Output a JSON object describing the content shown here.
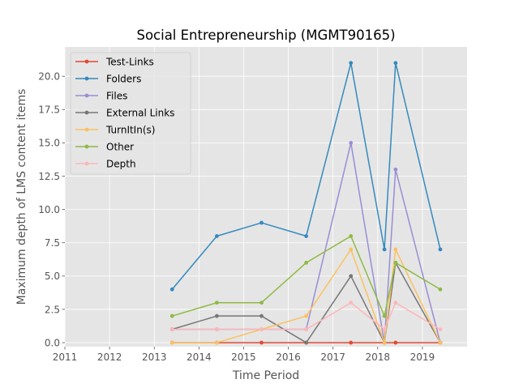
{
  "chart_data": {
    "type": "line",
    "title": "Social Entrepreneurship (MGMT90165)",
    "xlabel": "Time Period",
    "ylabel": "Maximum depth of LMS content items",
    "xlim": [
      2011,
      2020
    ],
    "ylim": [
      -0.3,
      22.2
    ],
    "xticks": [
      "2011",
      "2012",
      "2013",
      "2014",
      "2015",
      "2016",
      "2017",
      "2018",
      "2019"
    ],
    "xtick_values": [
      2011,
      2012,
      2013,
      2014,
      2015,
      2016,
      2017,
      2018,
      2019
    ],
    "yticks": [
      "0.0",
      "2.5",
      "5.0",
      "7.5",
      "10.0",
      "12.5",
      "15.0",
      "17.5",
      "20.0"
    ],
    "ytick_values": [
      0,
      2.5,
      5,
      7.5,
      10,
      12.5,
      15,
      17.5,
      20
    ],
    "grid": true,
    "legend_position": "top-left",
    "x": [
      2013.4,
      2014.4,
      2015.4,
      2016.4,
      2017.4,
      2018.15,
      2018.4,
      2019.4
    ],
    "series": [
      {
        "name": "Test-Links",
        "color": "#E24A33",
        "values": [
          0,
          0,
          0,
          0,
          0,
          0,
          0,
          0
        ]
      },
      {
        "name": "Folders",
        "color": "#348ABD",
        "values": [
          4,
          8,
          9,
          8,
          21,
          7,
          21,
          7
        ]
      },
      {
        "name": "Files",
        "color": "#988ED5",
        "values": [
          1,
          1,
          1,
          1,
          15,
          0,
          13,
          0
        ]
      },
      {
        "name": "External Links",
        "color": "#777777",
        "values": [
          1,
          2,
          2,
          0,
          5,
          0,
          6,
          0
        ]
      },
      {
        "name": "TurnItIn(s)",
        "color": "#FBC15E",
        "values": [
          0,
          0,
          1,
          2,
          7,
          0,
          7,
          0
        ]
      },
      {
        "name": "Other",
        "color": "#8EBA42",
        "values": [
          2,
          3,
          3,
          6,
          8,
          2,
          6,
          4
        ]
      },
      {
        "name": "Depth",
        "color": "#FFB5B8",
        "values": [
          1,
          1,
          1,
          1,
          3,
          1,
          3,
          1
        ]
      }
    ]
  }
}
